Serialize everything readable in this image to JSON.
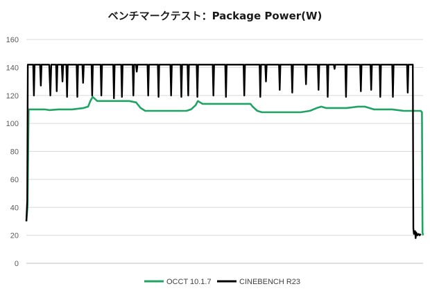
{
  "chart_data": {
    "type": "line",
    "title": "ベンチマークテスト：Package Power(W)",
    "xlabel": "",
    "ylabel": "",
    "ylim": [
      0,
      160
    ],
    "yticks": [
      0,
      20,
      40,
      60,
      80,
      100,
      120,
      140,
      160
    ],
    "grid": true,
    "legend_position": "bottom",
    "series": [
      {
        "name": "OCCT 10.1.7",
        "color": "#1ea362",
        "points": [
          [
            0,
            30
          ],
          [
            1,
            40
          ],
          [
            2,
            110
          ],
          [
            4,
            110
          ],
          [
            8,
            110
          ],
          [
            16,
            110
          ],
          [
            20,
            109.5
          ],
          [
            28,
            110
          ],
          [
            32,
            110
          ],
          [
            40,
            110
          ],
          [
            50,
            111
          ],
          [
            54,
            112
          ],
          [
            56,
            116
          ],
          [
            58,
            119
          ],
          [
            62,
            116
          ],
          [
            70,
            116
          ],
          [
            80,
            116
          ],
          [
            90,
            116
          ],
          [
            96,
            115
          ],
          [
            100,
            111
          ],
          [
            104,
            109
          ],
          [
            110,
            109
          ],
          [
            120,
            109
          ],
          [
            130,
            109
          ],
          [
            140,
            109
          ],
          [
            144,
            110
          ],
          [
            148,
            113
          ],
          [
            150,
            116
          ],
          [
            154,
            114
          ],
          [
            160,
            114
          ],
          [
            170,
            114
          ],
          [
            180,
            114
          ],
          [
            190,
            114
          ],
          [
            196,
            114
          ],
          [
            198,
            112
          ],
          [
            202,
            109
          ],
          [
            206,
            108
          ],
          [
            210,
            108
          ],
          [
            220,
            108
          ],
          [
            230,
            108
          ],
          [
            240,
            108
          ],
          [
            244,
            108.5
          ],
          [
            248,
            109
          ],
          [
            254,
            111
          ],
          [
            258,
            112
          ],
          [
            262,
            111
          ],
          [
            270,
            111
          ],
          [
            280,
            111
          ],
          [
            290,
            112
          ],
          [
            296,
            112
          ],
          [
            300,
            111
          ],
          [
            304,
            110
          ],
          [
            310,
            110
          ],
          [
            320,
            110
          ],
          [
            330,
            109
          ],
          [
            340,
            109
          ],
          [
            345,
            109
          ],
          [
            346,
            108
          ],
          [
            346.5,
            22
          ],
          [
            347,
            20
          ]
        ]
      },
      {
        "name": "CINEBENCH R23",
        "color": "#000000",
        "points": [
          [
            0,
            30
          ],
          [
            0.8,
            45
          ],
          [
            1.3,
            142
          ],
          [
            6,
            142
          ],
          [
            6.6,
            120
          ],
          [
            7.2,
            142
          ],
          [
            12,
            142
          ],
          [
            12.7,
            127
          ],
          [
            13.3,
            142
          ],
          [
            20,
            142
          ],
          [
            21,
            120
          ],
          [
            21.8,
            142
          ],
          [
            26,
            142
          ],
          [
            26.6,
            123
          ],
          [
            27.2,
            142
          ],
          [
            31,
            142
          ],
          [
            31.6,
            130
          ],
          [
            32.2,
            142
          ],
          [
            35,
            142
          ],
          [
            35.6,
            119
          ],
          [
            36.2,
            142
          ],
          [
            44,
            142
          ],
          [
            44.6,
            119
          ],
          [
            45.2,
            142
          ],
          [
            49,
            142
          ],
          [
            49.6,
            129
          ],
          [
            50.2,
            142
          ],
          [
            57,
            142
          ],
          [
            57.6,
            120
          ],
          [
            58.2,
            142
          ],
          [
            65,
            142
          ],
          [
            65.6,
            120
          ],
          [
            66.2,
            142
          ],
          [
            76,
            142
          ],
          [
            76.6,
            118
          ],
          [
            77.2,
            142
          ],
          [
            83,
            142
          ],
          [
            83.6,
            119
          ],
          [
            84.2,
            142
          ],
          [
            93,
            142
          ],
          [
            93.6,
            120
          ],
          [
            94.2,
            142
          ],
          [
            96,
            142
          ],
          [
            96.6,
            137
          ],
          [
            97.2,
            142
          ],
          [
            106,
            142
          ],
          [
            106.6,
            120
          ],
          [
            107.2,
            142
          ],
          [
            115,
            142
          ],
          [
            115.6,
            119
          ],
          [
            116.2,
            142
          ],
          [
            126,
            142
          ],
          [
            126.6,
            120
          ],
          [
            127.2,
            142
          ],
          [
            135,
            142
          ],
          [
            135.6,
            119
          ],
          [
            136.2,
            142
          ],
          [
            141,
            142
          ],
          [
            141.6,
            120
          ],
          [
            142.2,
            142
          ],
          [
            149,
            142
          ],
          [
            149.6,
            119
          ],
          [
            150.2,
            142
          ],
          [
            163,
            142
          ],
          [
            163.6,
            120
          ],
          [
            164.2,
            142
          ],
          [
            174,
            142
          ],
          [
            174.6,
            119
          ],
          [
            175.2,
            142
          ],
          [
            190,
            142
          ],
          [
            190.6,
            120
          ],
          [
            191.2,
            142
          ],
          [
            204,
            142
          ],
          [
            204.6,
            119
          ],
          [
            205.2,
            142
          ],
          [
            209,
            142
          ],
          [
            209.6,
            130
          ],
          [
            210.2,
            142
          ],
          [
            221,
            142
          ],
          [
            221.6,
            124
          ],
          [
            222.2,
            142
          ],
          [
            232,
            142
          ],
          [
            232.6,
            122
          ],
          [
            233.2,
            142
          ],
          [
            244,
            142
          ],
          [
            244.6,
            128
          ],
          [
            245.2,
            142
          ],
          [
            255,
            142
          ],
          [
            255.6,
            124
          ],
          [
            256.2,
            142
          ],
          [
            263,
            142
          ],
          [
            263.6,
            119
          ],
          [
            264.2,
            142
          ],
          [
            269,
            142
          ],
          [
            269.6,
            139
          ],
          [
            270.2,
            142
          ],
          [
            279,
            142
          ],
          [
            279.6,
            119
          ],
          [
            280.2,
            142
          ],
          [
            292,
            142
          ],
          [
            292.6,
            123
          ],
          [
            293.2,
            142
          ],
          [
            301,
            142
          ],
          [
            301.6,
            124
          ],
          [
            302.2,
            142
          ],
          [
            309,
            142
          ],
          [
            309.6,
            119
          ],
          [
            310.2,
            142
          ],
          [
            320,
            142
          ],
          [
            320.6,
            119
          ],
          [
            321.2,
            142
          ],
          [
            333,
            142
          ],
          [
            333.6,
            122
          ],
          [
            334.2,
            142
          ],
          [
            338,
            142
          ],
          [
            338.5,
            25
          ],
          [
            339,
            21
          ],
          [
            340,
            23
          ],
          [
            340.5,
            18
          ],
          [
            341,
            22
          ],
          [
            342,
            20
          ],
          [
            343,
            21
          ],
          [
            344,
            20
          ],
          [
            345,
            21
          ]
        ]
      }
    ]
  }
}
